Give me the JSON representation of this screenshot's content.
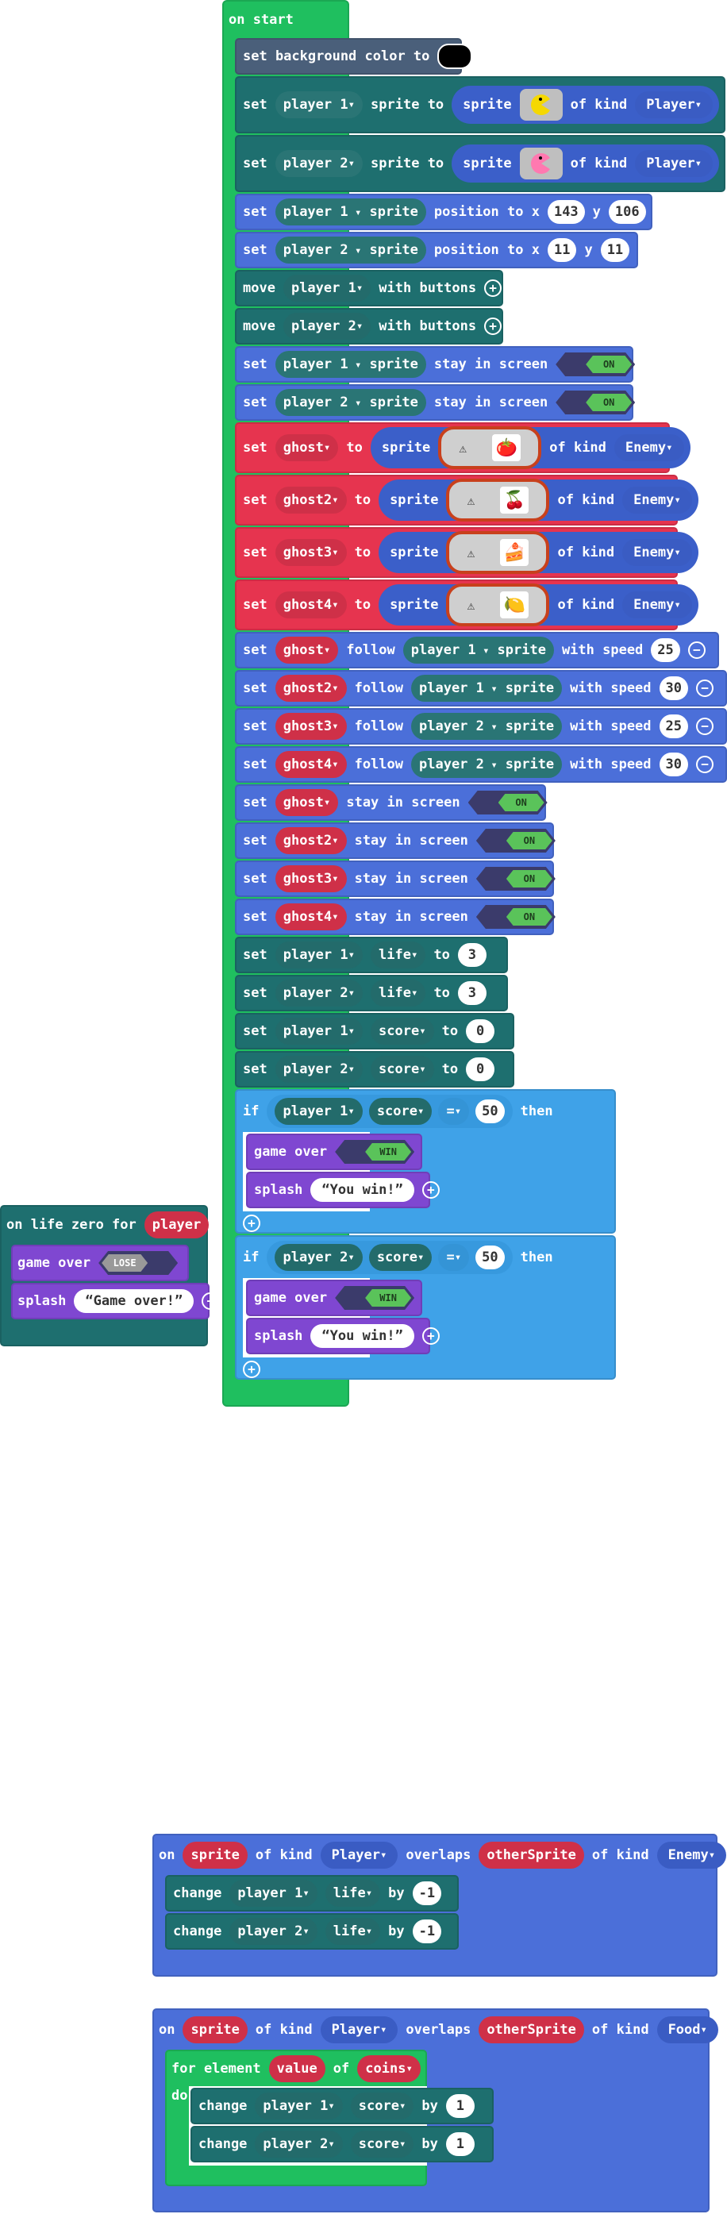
{
  "colors": {
    "loops_green": "#1fbf5f",
    "sprites_blue": "#4b6fd9",
    "vars_red": "#e6344f",
    "info_teal": "#1e6f6f",
    "game_purple": "#7f47d1",
    "logic_blue": "#3fa2e8",
    "scene_slate": "#4a5f7a"
  },
  "on_start": {
    "hat_label": "on start",
    "bg": {
      "set_label": "set background color to"
    },
    "sprite_rows": [
      {
        "set": "set",
        "var": "player 1",
        "to": "sprite to",
        "sprite": "sprite",
        "of_kind": "of kind",
        "kind": "Player"
      },
      {
        "set": "set",
        "var": "player 2",
        "to": "sprite to",
        "sprite": "sprite",
        "of_kind": "of kind",
        "kind": "Player"
      }
    ],
    "position_rows": [
      {
        "set": "set",
        "var": "player 1",
        "sprite": "sprite",
        "pos": "position to x",
        "x": "143",
        "y_label": "y",
        "y": "106"
      },
      {
        "set": "set",
        "var": "player 2",
        "sprite": "sprite",
        "pos": "position to x",
        "x": "11",
        "y_label": "y",
        "y": "11"
      }
    ],
    "move_rows": [
      {
        "move": "move",
        "var": "player 1",
        "with": "with buttons"
      },
      {
        "move": "move",
        "var": "player 2",
        "with": "with buttons"
      }
    ],
    "stay_rows_players": [
      {
        "set": "set",
        "var": "player 1",
        "sprite": "sprite",
        "stay": "stay in screen",
        "toggle": "ON"
      },
      {
        "set": "set",
        "var": "player 2",
        "sprite": "sprite",
        "stay": "stay in screen",
        "toggle": "ON"
      }
    ],
    "ghost_rows": [
      {
        "set": "set",
        "var": "ghost",
        "to": "to",
        "sprite": "sprite",
        "of_kind": "of kind",
        "kind": "Enemy",
        "food": "🍅"
      },
      {
        "set": "set",
        "var": "ghost2",
        "to": "to",
        "sprite": "sprite",
        "of_kind": "of kind",
        "kind": "Enemy",
        "food": "🍒"
      },
      {
        "set": "set",
        "var": "ghost3",
        "to": "to",
        "sprite": "sprite",
        "of_kind": "of kind",
        "kind": "Enemy",
        "food": "🍰"
      },
      {
        "set": "set",
        "var": "ghost4",
        "to": "to",
        "sprite": "sprite",
        "of_kind": "of kind",
        "kind": "Enemy",
        "food": "🍋"
      }
    ],
    "follow_rows": [
      {
        "set": "set",
        "ghost": "ghost",
        "follow": "follow",
        "player": "player 1",
        "sprite": "sprite",
        "speed_label": "with speed",
        "speed": "25"
      },
      {
        "set": "set",
        "ghost": "ghost2",
        "follow": "follow",
        "player": "player 1",
        "sprite": "sprite",
        "speed_label": "with speed",
        "speed": "30"
      },
      {
        "set": "set",
        "ghost": "ghost3",
        "follow": "follow",
        "player": "player 2",
        "sprite": "sprite",
        "speed_label": "with speed",
        "speed": "25"
      },
      {
        "set": "set",
        "ghost": "ghost4",
        "follow": "follow",
        "player": "player 2",
        "sprite": "sprite",
        "speed_label": "with speed",
        "speed": "30"
      }
    ],
    "stay_rows_ghosts": [
      {
        "set": "set",
        "ghost": "ghost",
        "stay": "stay in screen",
        "toggle": "ON"
      },
      {
        "set": "set",
        "ghost": "ghost2",
        "stay": "stay in screen",
        "toggle": "ON"
      },
      {
        "set": "set",
        "ghost": "ghost3",
        "stay": "stay in screen",
        "toggle": "ON"
      },
      {
        "set": "set",
        "ghost": "ghost4",
        "stay": "stay in screen",
        "toggle": "ON"
      }
    ],
    "stat_rows": [
      {
        "set": "set",
        "player": "player 1",
        "stat": "life",
        "to": "to",
        "value": "3"
      },
      {
        "set": "set",
        "player": "player 2",
        "stat": "life",
        "to": "to",
        "value": "3"
      },
      {
        "set": "set",
        "player": "player 1",
        "stat": "score",
        "to": "to",
        "value": "0"
      },
      {
        "set": "set",
        "player": "player 2",
        "stat": "score",
        "to": "to",
        "value": "0"
      }
    ],
    "if_blocks": [
      {
        "if": "if",
        "player": "player 1",
        "stat": "score",
        "op": "=",
        "value": "50",
        "then": "then",
        "game_over": "game over",
        "result": "WIN",
        "splash": "splash",
        "message": "You win!"
      },
      {
        "if": "if",
        "player": "player 2",
        "stat": "score",
        "op": "=",
        "value": "50",
        "then": "then",
        "game_over": "game over",
        "result": "WIN",
        "splash": "splash",
        "message": "You win!"
      }
    ]
  },
  "life_zero": {
    "hat_label": "on life zero for",
    "player": "player",
    "game_over": "game over",
    "result": "LOSE",
    "splash": "splash",
    "message": "Game over!"
  },
  "overlap_enemy": {
    "on": "on",
    "sprite": "sprite",
    "of_kind": "of kind",
    "kind": "Player",
    "overlaps": "overlaps",
    "other": "otherSprite",
    "of_kind2": "of kind",
    "kind2": "Enemy",
    "rows": [
      {
        "change": "change",
        "player": "player 1",
        "stat": "life",
        "by": "by",
        "value": "-1"
      },
      {
        "change": "change",
        "player": "player 2",
        "stat": "life",
        "by": "by",
        "value": "-1"
      }
    ]
  },
  "overlap_food": {
    "on": "on",
    "sprite": "sprite",
    "of_kind": "of kind",
    "kind": "Player",
    "overlaps": "overlaps",
    "other": "otherSprite",
    "of_kind2": "of kind",
    "kind2": "Food",
    "for_label": "for element",
    "element": "value",
    "of": "of",
    "array": "coins",
    "do": "do",
    "rows": [
      {
        "change": "change",
        "player": "player 1",
        "stat": "score",
        "by": "by",
        "value": "1"
      },
      {
        "change": "change",
        "player": "player 2",
        "stat": "score",
        "by": "by",
        "value": "1"
      }
    ]
  }
}
